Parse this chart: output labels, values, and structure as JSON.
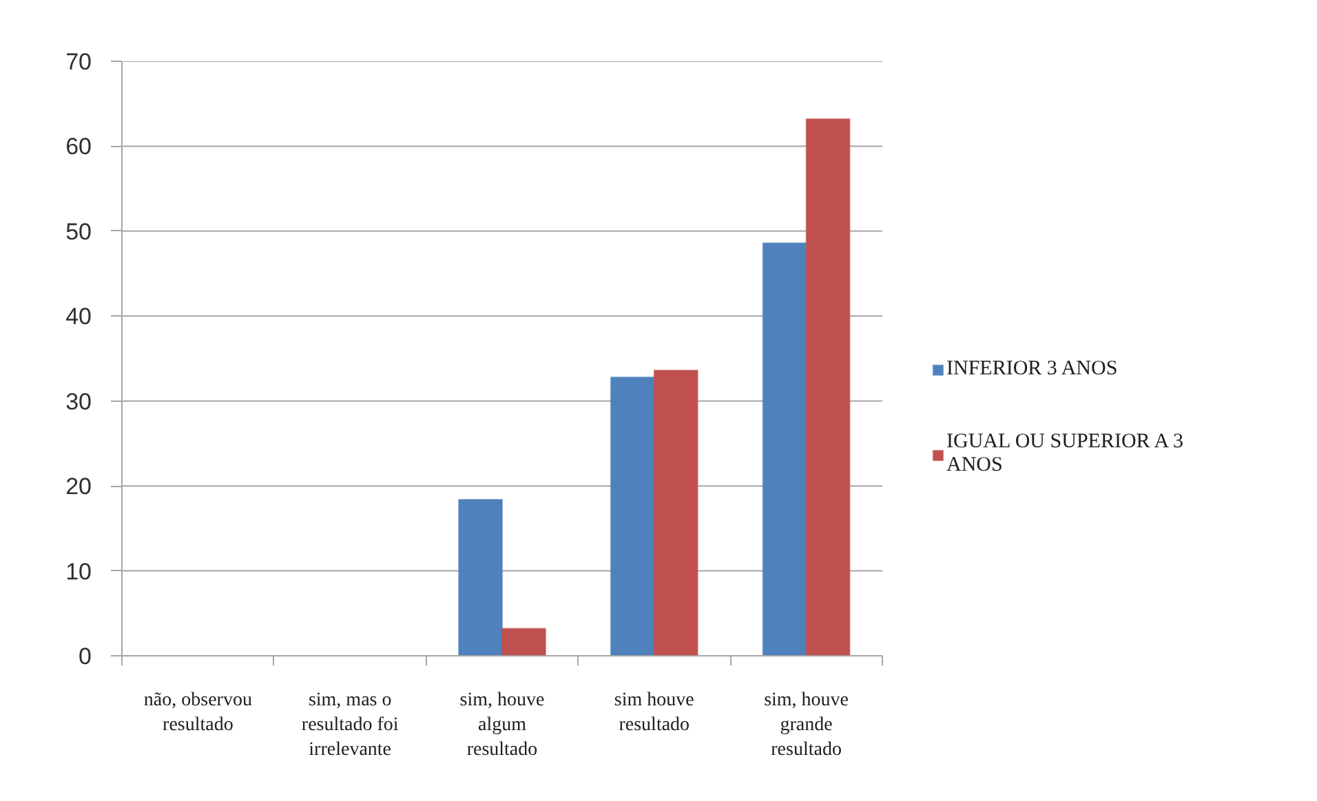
{
  "chart_data": {
    "type": "bar",
    "categories": [
      "não, observou resultado",
      "sim, mas o resultado foi irrelevante",
      "sim, houve algum resultado",
      "sim houve resultado",
      "sim, houve grande resultado"
    ],
    "series": [
      {
        "name": "INFERIOR 3 ANOS",
        "color": "#4f81bd",
        "values": [
          0,
          0,
          18.4,
          32.8,
          48.6
        ]
      },
      {
        "name": "IGUAL OU SUPERIOR A 3 ANOS",
        "color": "#c0504d",
        "values": [
          0,
          0,
          3.2,
          33.6,
          63.2
        ]
      }
    ],
    "ylim": [
      0,
      70
    ],
    "yticks": [
      0,
      10,
      20,
      30,
      40,
      50,
      60,
      70
    ],
    "grid": "y",
    "legend": "right"
  }
}
